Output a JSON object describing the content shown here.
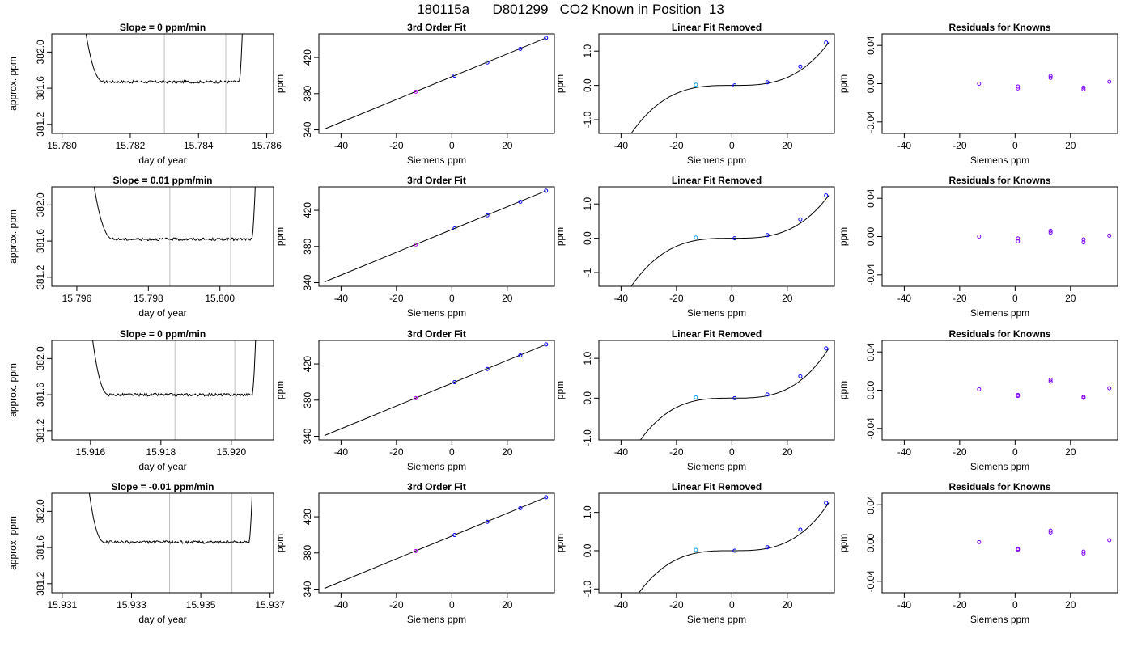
{
  "page_title": "180115a      D801299   CO2 Known in Position  13",
  "colors": {
    "trace": "#000000",
    "vline": "#bebebe",
    "fit_point": "#0000ff",
    "fit_point_alt": "#c000ff",
    "linear_first": "#00a0ff",
    "residual": "#7f00ff"
  },
  "chart_data": [
    {
      "row": 1,
      "col": 1,
      "type": "line",
      "title": "Slope =  0  ppm/min",
      "xlabel": "day of year",
      "ylabel": "approx. ppm",
      "xlim": [
        15.7797,
        15.7862
      ],
      "ylim": [
        381.1,
        382.2
      ],
      "xticks": [
        15.78,
        15.782,
        15.784,
        15.786
      ],
      "xtick_labels": [
        "15.780",
        "15.782",
        "15.784",
        "15.786"
      ],
      "yticks": [
        381.2,
        381.6,
        382.0
      ],
      "ytick_labels": [
        "381.2",
        "381.6",
        "382.0"
      ],
      "x_start": 15.7806,
      "x_end": 15.7853,
      "plateau_start": 15.7812,
      "plateau_end": 15.7852,
      "plateau": 381.67,
      "vlines": [
        15.783,
        15.7848
      ]
    },
    {
      "row": 1,
      "col": 2,
      "type": "scatter",
      "title": "3rd Order Fit",
      "xlabel": "Siemens ppm",
      "ylabel": "ppm",
      "xlim": [
        -48,
        37
      ],
      "ylim": [
        336,
        446
      ],
      "xticks": [
        -40,
        -20,
        0,
        20
      ],
      "yticks": [
        340,
        380,
        420
      ],
      "line": [
        [
          -46,
          340.8
        ],
        [
          34,
          441.6
        ]
      ],
      "points": [
        [
          -13,
          382.2
        ],
        [
          1,
          399.9
        ],
        [
          12.8,
          414.5
        ],
        [
          24.7,
          429.5
        ],
        [
          34,
          441.6
        ]
      ]
    },
    {
      "row": 1,
      "col": 3,
      "type": "scatter",
      "title": "Linear Fit Removed",
      "xlabel": "Siemens ppm",
      "ylabel": "ppm",
      "xlim": [
        -48,
        37
      ],
      "ylim": [
        -1.4,
        1.5
      ],
      "xticks": [
        -40,
        -20,
        0,
        20
      ],
      "yticks": [
        -1.0,
        0.0,
        1.0
      ],
      "ytick_labels": [
        "-1.0",
        "0.0",
        "1.0"
      ],
      "curve_coef": [
        0.0,
        0.0,
        0.0,
        2.92e-05
      ],
      "points": [
        [
          -13,
          0.02
        ],
        [
          1,
          0.0
        ],
        [
          12.8,
          0.09
        ],
        [
          24.7,
          0.55
        ],
        [
          34,
          1.25
        ]
      ]
    },
    {
      "row": 1,
      "col": 4,
      "type": "scatter",
      "title": "Residuals for Knowns",
      "xlabel": "Siemens ppm",
      "ylabel": "ppm",
      "xlim": [
        -48,
        37
      ],
      "ylim": [
        -0.052,
        0.052
      ],
      "xticks": [
        -40,
        -20,
        0,
        20
      ],
      "yticks": [
        -0.04,
        0.0,
        0.04
      ],
      "ytick_labels": [
        "-0.04",
        "0.00",
        "0.04"
      ],
      "points": [
        [
          -13,
          0.0
        ],
        [
          1,
          -0.003
        ],
        [
          1,
          -0.005
        ],
        [
          12.8,
          0.008
        ],
        [
          12.8,
          0.006
        ],
        [
          24.7,
          -0.004
        ],
        [
          24.7,
          -0.006
        ],
        [
          34,
          0.002
        ]
      ]
    },
    {
      "row": 2,
      "col": 1,
      "type": "line",
      "title": "Slope =  0.01  ppm/min",
      "xlabel": "day of year",
      "ylabel": "approx. ppm",
      "xlim": [
        15.7953,
        15.8015
      ],
      "ylim": [
        381.1,
        382.2
      ],
      "xticks": [
        15.796,
        15.798,
        15.8
      ],
      "xtick_labels": [
        "15.796",
        "15.798",
        "15.800"
      ],
      "yticks": [
        381.2,
        381.6,
        382.0
      ],
      "ytick_labels": [
        "381.2",
        "381.6",
        "382.0"
      ],
      "x_start": 15.7964,
      "x_end": 15.801,
      "plateau_start": 15.797,
      "plateau_end": 15.8009,
      "plateau": 381.62,
      "vlines": [
        15.7986,
        15.8003
      ]
    },
    {
      "row": 2,
      "col": 2,
      "type": "scatter",
      "title": "3rd Order Fit",
      "xlabel": "Siemens ppm",
      "ylabel": "ppm",
      "xlim": [
        -48,
        37
      ],
      "ylim": [
        336,
        446
      ],
      "xticks": [
        -40,
        -20,
        0,
        20
      ],
      "yticks": [
        340,
        380,
        420
      ],
      "line": [
        [
          -46,
          340.8
        ],
        [
          34,
          441.6
        ]
      ],
      "points": [
        [
          -13,
          382.2
        ],
        [
          1,
          399.9
        ],
        [
          12.8,
          414.5
        ],
        [
          24.7,
          429.5
        ],
        [
          34,
          441.6
        ]
      ]
    },
    {
      "row": 2,
      "col": 3,
      "type": "scatter",
      "title": "Linear Fit Removed",
      "xlabel": "Siemens ppm",
      "ylabel": "ppm",
      "xlim": [
        -48,
        37
      ],
      "ylim": [
        -1.4,
        1.5
      ],
      "xticks": [
        -40,
        -20,
        0,
        20
      ],
      "yticks": [
        -1.0,
        0.0,
        1.0
      ],
      "ytick_labels": [
        "-1",
        "0.0",
        "1.0"
      ],
      "curve_coef": [
        0.0,
        0.0,
        0.0,
        2.92e-05
      ],
      "points": [
        [
          -13,
          0.02
        ],
        [
          1,
          0.0
        ],
        [
          12.8,
          0.09
        ],
        [
          24.7,
          0.55
        ],
        [
          34,
          1.25
        ]
      ]
    },
    {
      "row": 2,
      "col": 4,
      "type": "scatter",
      "title": "Residuals for Knowns",
      "xlabel": "Siemens ppm",
      "ylabel": "ppm",
      "xlim": [
        -48,
        37
      ],
      "ylim": [
        -0.052,
        0.052
      ],
      "xticks": [
        -40,
        -20,
        0,
        20
      ],
      "yticks": [
        -0.04,
        0.0,
        0.04
      ],
      "ytick_labels": [
        "-0.04",
        "0.00",
        "0.04"
      ],
      "points": [
        [
          -13,
          0.0
        ],
        [
          1,
          -0.002
        ],
        [
          1,
          -0.005
        ],
        [
          12.8,
          0.006
        ],
        [
          12.8,
          0.004
        ],
        [
          24.7,
          -0.003
        ],
        [
          24.7,
          -0.006
        ],
        [
          34,
          0.001
        ]
      ]
    },
    {
      "row": 3,
      "col": 1,
      "type": "line",
      "title": "Slope =  0  ppm/min",
      "xlabel": "day of year",
      "ylabel": "approx. ppm",
      "xlim": [
        15.9149,
        15.9212
      ],
      "ylim": [
        381.1,
        382.2
      ],
      "xticks": [
        15.916,
        15.918,
        15.92
      ],
      "xtick_labels": [
        "15.916",
        "15.918",
        "15.920"
      ],
      "yticks": [
        381.2,
        381.6,
        382.0
      ],
      "ytick_labels": [
        "381.2",
        "381.6",
        "382.0"
      ],
      "x_start": 15.916,
      "x_end": 15.9207,
      "plateau_start": 15.9165,
      "plateau_end": 15.9206,
      "plateau": 381.6,
      "vlines": [
        15.9184,
        15.9201
      ]
    },
    {
      "row": 3,
      "col": 2,
      "type": "scatter",
      "title": "3rd Order Fit",
      "xlabel": "Siemens ppm",
      "ylabel": "ppm",
      "xlim": [
        -48,
        37
      ],
      "ylim": [
        336,
        446
      ],
      "xticks": [
        -40,
        -20,
        0,
        20
      ],
      "yticks": [
        340,
        380,
        420
      ],
      "line": [
        [
          -46,
          340.8
        ],
        [
          34,
          441.6
        ]
      ],
      "points": [
        [
          -13,
          382.2
        ],
        [
          1,
          399.9
        ],
        [
          12.8,
          414.5
        ],
        [
          24.7,
          429.5
        ],
        [
          34,
          441.6
        ]
      ]
    },
    {
      "row": 3,
      "col": 3,
      "type": "scatter",
      "title": "Linear Fit Removed",
      "xlabel": "Siemens ppm",
      "ylabel": "ppm",
      "xlim": [
        -48,
        37
      ],
      "ylim": [
        -1.05,
        1.45
      ],
      "xticks": [
        -40,
        -20,
        0,
        20
      ],
      "yticks": [
        -1.0,
        0.0,
        1.0
      ],
      "ytick_labels": [
        "-1.0",
        "0.0",
        "1.0"
      ],
      "curve_coef": [
        0.0,
        0.0,
        0.0,
        2.92e-05
      ],
      "points": [
        [
          -13,
          0.02
        ],
        [
          1,
          0.0
        ],
        [
          12.8,
          0.09
        ],
        [
          24.7,
          0.55
        ],
        [
          34,
          1.25
        ]
      ]
    },
    {
      "row": 3,
      "col": 4,
      "type": "scatter",
      "title": "Residuals for Knowns",
      "xlabel": "Siemens ppm",
      "ylabel": "ppm",
      "xlim": [
        -48,
        37
      ],
      "ylim": [
        -0.052,
        0.052
      ],
      "xticks": [
        -40,
        -20,
        0,
        20
      ],
      "yticks": [
        -0.04,
        0.0,
        0.04
      ],
      "ytick_labels": [
        "-0.04",
        "0.00",
        "0.04"
      ],
      "points": [
        [
          -13,
          0.001
        ],
        [
          1,
          -0.005
        ],
        [
          1,
          -0.006
        ],
        [
          12.8,
          0.011
        ],
        [
          12.8,
          0.009
        ],
        [
          24.7,
          -0.007
        ],
        [
          24.7,
          -0.008
        ],
        [
          34,
          0.002
        ]
      ]
    },
    {
      "row": 4,
      "col": 1,
      "type": "line",
      "title": "Slope =  -0.01  ppm/min",
      "xlabel": "day of year",
      "ylabel": "approx. ppm",
      "xlim": [
        15.9307,
        15.9371
      ],
      "ylim": [
        381.1,
        382.2
      ],
      "xticks": [
        15.931,
        15.933,
        15.935,
        15.937
      ],
      "xtick_labels": [
        "15.931",
        "15.933",
        "15.935",
        "15.937"
      ],
      "yticks": [
        381.2,
        381.6,
        382.0
      ],
      "ytick_labels": [
        "381.2",
        "381.6",
        "382.0"
      ],
      "x_start": 15.9317,
      "x_end": 15.9365,
      "plateau_start": 15.9322,
      "plateau_end": 15.9364,
      "plateau": 381.66,
      "vlines": [
        15.9341,
        15.9359
      ]
    },
    {
      "row": 4,
      "col": 2,
      "type": "scatter",
      "title": "3rd Order Fit",
      "xlabel": "Siemens ppm",
      "ylabel": "ppm",
      "xlim": [
        -48,
        37
      ],
      "ylim": [
        336,
        446
      ],
      "xticks": [
        -40,
        -20,
        0,
        20
      ],
      "yticks": [
        340,
        380,
        420
      ],
      "line": [
        [
          -46,
          340.8
        ],
        [
          34,
          441.6
        ]
      ],
      "points": [
        [
          -13,
          382.2
        ],
        [
          1,
          399.9
        ],
        [
          12.8,
          414.5
        ],
        [
          24.7,
          429.5
        ],
        [
          34,
          441.6
        ]
      ]
    },
    {
      "row": 4,
      "col": 3,
      "type": "scatter",
      "title": "Linear Fit Removed",
      "xlabel": "Siemens ppm",
      "ylabel": "ppm",
      "xlim": [
        -48,
        37
      ],
      "ylim": [
        -1.1,
        1.5
      ],
      "xticks": [
        -40,
        -20,
        0,
        20
      ],
      "yticks": [
        -1.0,
        0.0,
        1.0
      ],
      "ytick_labels": [
        "-1.0",
        "0.0",
        "1.0"
      ],
      "curve_coef": [
        0.0,
        0.0,
        0.0,
        2.92e-05
      ],
      "points": [
        [
          -13,
          0.02
        ],
        [
          1,
          0.0
        ],
        [
          12.8,
          0.09
        ],
        [
          24.7,
          0.55
        ],
        [
          34,
          1.25
        ]
      ]
    },
    {
      "row": 4,
      "col": 4,
      "type": "scatter",
      "title": "Residuals for Knowns",
      "xlabel": "Siemens ppm",
      "ylabel": "ppm",
      "xlim": [
        -48,
        37
      ],
      "ylim": [
        -0.052,
        0.052
      ],
      "xticks": [
        -40,
        -20,
        0,
        20
      ],
      "yticks": [
        -0.04,
        0.0,
        0.04
      ],
      "ytick_labels": [
        "-0.04",
        "0.00",
        "0.04"
      ],
      "points": [
        [
          -13,
          0.001
        ],
        [
          1,
          -0.006
        ],
        [
          1,
          -0.007
        ],
        [
          12.8,
          0.013
        ],
        [
          12.8,
          0.011
        ],
        [
          24.7,
          -0.009
        ],
        [
          24.7,
          -0.011
        ],
        [
          34,
          0.003
        ]
      ]
    }
  ]
}
